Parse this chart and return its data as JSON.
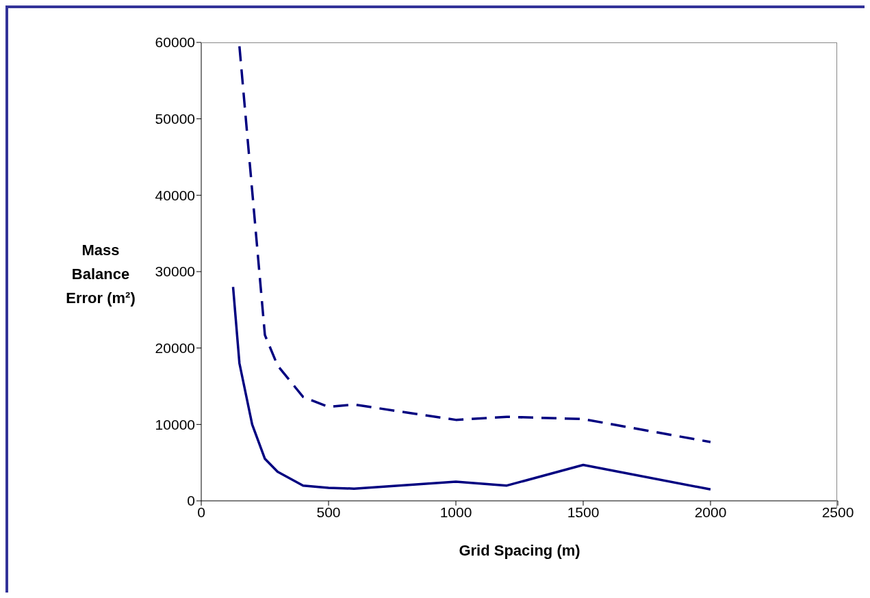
{
  "chart_data": {
    "type": "line",
    "xlabel": "Grid Spacing (m)",
    "ylabel": "Mass Balance Error (m²)",
    "xlim": [
      0,
      2500
    ],
    "xticks": [
      0,
      500,
      1000,
      1500,
      2000,
      2500
    ],
    "ylim": [
      0,
      60000
    ],
    "yticks": [
      0,
      10000,
      20000,
      30000,
      40000,
      50000,
      60000
    ],
    "grid": false,
    "legend": false,
    "marker": "none",
    "series": [
      {
        "color": "#000080",
        "line_style": "solid",
        "x": [
          125,
          150,
          200,
          250,
          300,
          400,
          500,
          600,
          1000,
          1200,
          1500,
          2000
        ],
        "values": [
          28000,
          18000,
          10000,
          5500,
          3800,
          2000,
          1700,
          1600,
          2500,
          2000,
          4700,
          1500
        ]
      },
      {
        "color": "#000080",
        "line_style": "dashed",
        "x": [
          150,
          250,
          300,
          400,
          500,
          600,
          1000,
          1200,
          1500,
          2000
        ],
        "values": [
          59500,
          21700,
          17700,
          13600,
          12300,
          12600,
          10600,
          11000,
          10700,
          7700
        ]
      }
    ]
  }
}
